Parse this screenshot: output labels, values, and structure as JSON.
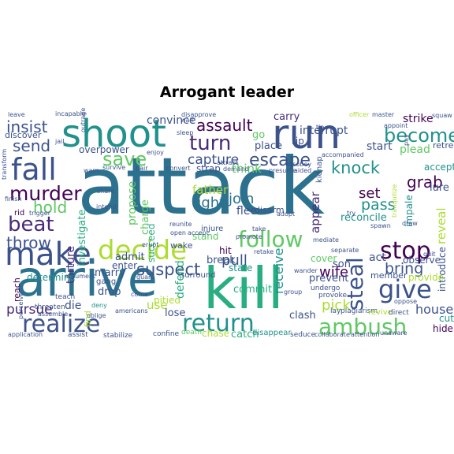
{
  "title": "Arrogant leader",
  "colors": {
    "background": "#ffffff",
    "palette": [
      "#440154",
      "#472a7a",
      "#3b528b",
      "#2c728e",
      "#21918c",
      "#28ae80",
      "#5ec962",
      "#addc30",
      "#fde725"
    ]
  },
  "words": [
    {
      "text": "attack",
      "c": "#2c728e"
    },
    {
      "text": "arrive",
      "c": "#2c728e"
    },
    {
      "text": "kill",
      "c": "#28ae80"
    },
    {
      "text": "run",
      "c": "#3b528b"
    },
    {
      "text": "shoot",
      "c": "#21918c"
    },
    {
      "text": "make",
      "c": "#3b528b"
    },
    {
      "text": "fall",
      "c": "#3b528b"
    },
    {
      "text": "decide",
      "c": "#addc30"
    },
    {
      "text": "realize",
      "c": "#3b528b"
    },
    {
      "text": "return",
      "c": "#21918c"
    },
    {
      "text": "give",
      "c": "#3b528b"
    },
    {
      "text": "follow",
      "c": "#5ec962"
    },
    {
      "text": "ambush",
      "c": "#5ec962"
    },
    {
      "text": "stop",
      "c": "#440154"
    },
    {
      "text": "murder",
      "c": "#440154"
    },
    {
      "text": "beat",
      "c": "#472a7a"
    },
    {
      "text": "save",
      "c": "#5ec962"
    },
    {
      "text": "become",
      "c": "#21918c"
    },
    {
      "text": "turn",
      "c": "#472a7a"
    },
    {
      "text": "steal",
      "c": "#3b528b"
    },
    {
      "text": "escape",
      "c": "#3b528b"
    },
    {
      "text": "knock",
      "c": "#21918c"
    },
    {
      "text": "suspect",
      "c": "#3b528b"
    },
    {
      "text": "assault",
      "c": "#440154"
    },
    {
      "text": "insist",
      "c": "#3b528b"
    },
    {
      "text": "send",
      "c": "#3b528b"
    },
    {
      "text": "hold",
      "c": "#5ec962"
    },
    {
      "text": "throw",
      "c": "#3b528b"
    },
    {
      "text": "pursue",
      "c": "#472a7a"
    },
    {
      "text": "grab",
      "c": "#440154"
    },
    {
      "text": "pass",
      "c": "#21918c"
    },
    {
      "text": "bring",
      "c": "#3b528b"
    },
    {
      "text": "fight",
      "c": "#2c728e"
    },
    {
      "text": "join",
      "c": "#2c728e"
    },
    {
      "text": "capture",
      "c": "#3b528b"
    },
    {
      "text": "pull",
      "c": "#3b528b"
    },
    {
      "text": "set",
      "c": "#440154"
    },
    {
      "text": "wife",
      "c": "#440154"
    },
    {
      "text": "pick",
      "c": "#addc30"
    },
    {
      "text": "house",
      "c": "#3b528b"
    },
    {
      "text": "receive",
      "c": "#21918c"
    },
    {
      "text": "reveal",
      "c": "#addc30"
    },
    {
      "text": "appear",
      "c": "#472a7a"
    },
    {
      "text": "father",
      "c": "#addc30"
    },
    {
      "text": "think",
      "c": "#5ec962"
    },
    {
      "text": "flee",
      "c": "#3b528b"
    },
    {
      "text": "convince",
      "c": "#3b528b"
    },
    {
      "text": "start",
      "c": "#3b528b"
    },
    {
      "text": "plead",
      "c": "#5ec962"
    },
    {
      "text": "strike",
      "c": "#440154"
    },
    {
      "text": "interrupt",
      "c": "#3b528b"
    },
    {
      "text": "carry",
      "c": "#472a7a"
    },
    {
      "text": "place",
      "c": "#3b528b"
    },
    {
      "text": "go",
      "c": "#5ec962"
    },
    {
      "text": "rip",
      "c": "#3b528b"
    },
    {
      "text": "retreat",
      "c": "#3b528b"
    },
    {
      "text": "propose",
      "c": "#5ec962"
    },
    {
      "text": "charge",
      "c": "#5ec962"
    },
    {
      "text": "investigate",
      "c": "#28ae80"
    },
    {
      "text": "torture",
      "c": "#472a7a"
    },
    {
      "text": "determine",
      "c": "#21918c"
    },
    {
      "text": "reach",
      "c": "#440154"
    },
    {
      "text": "die",
      "c": "#3b528b"
    },
    {
      "text": "admit",
      "c": "#3b528b"
    },
    {
      "text": "marry",
      "c": "#3b528b"
    },
    {
      "text": "drop",
      "c": "#3b528b"
    },
    {
      "text": "use",
      "c": "#addc30"
    },
    {
      "text": "lose",
      "c": "#3b528b"
    },
    {
      "text": "pitied",
      "c": "#addc30"
    },
    {
      "text": "defend",
      "c": "#28ae80"
    },
    {
      "text": "break",
      "c": "#3b528b"
    },
    {
      "text": "hit",
      "c": "#440154"
    },
    {
      "text": "state",
      "c": "#21918c"
    },
    {
      "text": "commit",
      "c": "#28ae80"
    },
    {
      "text": "chase",
      "c": "#addc30"
    },
    {
      "text": "catch",
      "c": "#28ae80"
    },
    {
      "text": "act",
      "c": "#3b528b"
    },
    {
      "text": "son",
      "c": "#3b528b"
    },
    {
      "text": "observe",
      "c": "#3b528b"
    },
    {
      "text": "introduce",
      "c": "#3b528b"
    },
    {
      "text": "lure",
      "c": "#3b528b"
    },
    {
      "text": "accept",
      "c": "#21918c"
    },
    {
      "text": "impale",
      "c": "#21918c"
    },
    {
      "text": "reconcile",
      "c": "#21918c"
    },
    {
      "text": "prevent",
      "c": "#3b528b"
    },
    {
      "text": "cover",
      "c": "#5ec962"
    },
    {
      "text": "member",
      "c": "#3b528b"
    },
    {
      "text": "provide",
      "c": "#addc30"
    },
    {
      "text": "cut",
      "c": "#21918c"
    },
    {
      "text": "hide",
      "c": "#440154"
    },
    {
      "text": "clash",
      "c": "#3b528b"
    },
    {
      "text": "disappear",
      "c": "#21918c"
    },
    {
      "text": "overpower",
      "c": "#3b528b"
    },
    {
      "text": "strap",
      "c": "#3b528b"
    },
    {
      "text": "stand",
      "c": "#5ec962"
    },
    {
      "text": "succeed",
      "c": "#28ae80"
    },
    {
      "text": "wake",
      "c": "#3b528b"
    },
    {
      "text": "enter",
      "c": "#3b528b"
    },
    {
      "text": "injure",
      "c": "#3b528b"
    },
    {
      "text": "surround",
      "c": "#3b528b"
    },
    {
      "text": "discover",
      "c": "#3b528b"
    },
    {
      "text": "kidnap",
      "c": "#3b528b"
    },
    {
      "text": "disarm",
      "c": "#3b528b"
    },
    {
      "text": "gang",
      "c": "#3b528b"
    },
    {
      "text": "find",
      "c": "#addc30"
    },
    {
      "text": "confine",
      "c": "#3b528b"
    },
    {
      "text": "death",
      "c": "#5ec962"
    },
    {
      "text": "seduce",
      "c": "#3b528b"
    },
    {
      "text": "collaborate",
      "c": "#3b528b"
    },
    {
      "text": "attention",
      "c": "#3b528b"
    },
    {
      "text": "lay",
      "c": "#3b528b"
    },
    {
      "text": "plagiarism",
      "c": "#3b528b"
    },
    {
      "text": "undergo",
      "c": "#3b528b"
    },
    {
      "text": "provoke",
      "c": "#3b528b"
    },
    {
      "text": "revive",
      "c": "#addc30"
    },
    {
      "text": "direct",
      "c": "#3b528b"
    },
    {
      "text": "unaware",
      "c": "#3b528b"
    },
    {
      "text": "stabilize",
      "c": "#3b528b"
    },
    {
      "text": "assist",
      "c": "#3b528b"
    },
    {
      "text": "application",
      "c": "#3b528b"
    },
    {
      "text": "assemble",
      "c": "#3b528b"
    },
    {
      "text": "perceive",
      "c": "#3b528b"
    },
    {
      "text": "threaten",
      "c": "#3b528b"
    },
    {
      "text": "teach",
      "c": "#3b528b"
    },
    {
      "text": "argument",
      "c": "#3b528b"
    },
    {
      "text": "oblige",
      "c": "#3b528b"
    },
    {
      "text": "americans",
      "c": "#3b528b"
    },
    {
      "text": "deny",
      "c": "#21918c"
    },
    {
      "text": "come",
      "c": "#3b528b"
    },
    {
      "text": "erupt",
      "c": "#3b528b"
    },
    {
      "text": "guard",
      "c": "#3b528b"
    },
    {
      "text": "rid",
      "c": "#440154"
    },
    {
      "text": "trigger",
      "c": "#3b528b"
    },
    {
      "text": "finish",
      "c": "#3b528b"
    },
    {
      "text": "leave",
      "c": "#3b528b"
    },
    {
      "text": "incapable",
      "c": "#3b528b"
    },
    {
      "text": "jail",
      "c": "#3b528b"
    },
    {
      "text": "warn",
      "c": "#3b528b"
    },
    {
      "text": "survive",
      "c": "#3b528b"
    },
    {
      "text": "pair",
      "c": "#3b528b"
    },
    {
      "text": "convert",
      "c": "#3b528b"
    },
    {
      "text": "enjoy",
      "c": "#3b528b"
    },
    {
      "text": "sleep",
      "c": "#3b528b"
    },
    {
      "text": "disapprove",
      "c": "#3b528b"
    },
    {
      "text": "attract",
      "c": "#3b528b"
    },
    {
      "text": "demand",
      "c": "#3b528b"
    },
    {
      "text": "disobey",
      "c": "#3b528b"
    },
    {
      "text": "tie",
      "c": "#3b528b"
    },
    {
      "text": "officer",
      "c": "#addc30"
    },
    {
      "text": "master",
      "c": "#3b528b"
    },
    {
      "text": "squaw",
      "c": "#3b528b"
    },
    {
      "text": "appoint",
      "c": "#3b528b"
    },
    {
      "text": "tranquilize",
      "c": "#addc30"
    },
    {
      "text": "quit",
      "c": "#3b528b"
    },
    {
      "text": "share",
      "c": "#3b528b"
    },
    {
      "text": "reunite",
      "c": "#3b528b"
    },
    {
      "text": "open",
      "c": "#3b528b"
    },
    {
      "text": "accept",
      "c": "#3b528b"
    },
    {
      "text": "promote",
      "c": "#3b528b"
    },
    {
      "text": "take",
      "c": "#3b528b"
    },
    {
      "text": "presume",
      "c": "#3b528b"
    },
    {
      "text": "aided",
      "c": "#3b528b"
    },
    {
      "text": "adopt",
      "c": "#3b528b"
    },
    {
      "text": "retake",
      "c": "#3b528b"
    },
    {
      "text": "mediate",
      "c": "#3b528b"
    },
    {
      "text": "separate",
      "c": "#3b528b"
    },
    {
      "text": "spawn",
      "c": "#3b528b"
    },
    {
      "text": "try",
      "c": "#3b528b"
    },
    {
      "text": "draw",
      "c": "#3b528b"
    },
    {
      "text": "accompanied",
      "c": "#3b528b"
    },
    {
      "text": "group",
      "c": "#3b528b"
    },
    {
      "text": "wander",
      "c": "#3b528b"
    },
    {
      "text": "oppose",
      "c": "#3b528b"
    },
    {
      "text": "pay",
      "c": "#3b528b"
    },
    {
      "text": "transform",
      "c": "#3b528b"
    },
    {
      "text": "outrage",
      "c": "#3b528b"
    },
    {
      "text": "intend",
      "c": "#3b528b"
    },
    {
      "text": "wait",
      "c": "#3b528b"
    }
  ]
}
